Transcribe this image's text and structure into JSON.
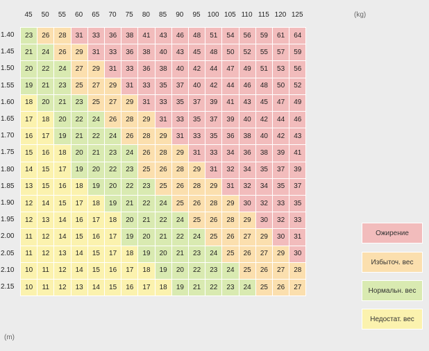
{
  "chart_data": {
    "type": "heatmap",
    "x_unit": "(kg)",
    "y_unit": "(m)",
    "weights": [
      "45",
      "50",
      "55",
      "60",
      "65",
      "70",
      "75",
      "80",
      "85",
      "90",
      "95",
      "100",
      "105",
      "110",
      "115",
      "120",
      "125"
    ],
    "heights": [
      "1.40",
      "1.45",
      "1.50",
      "1.55",
      "1.60",
      "1.65",
      "1.70",
      "1.75",
      "1.80",
      "1.85",
      "1.90",
      "1.95",
      "2.00",
      "2.05",
      "2.10",
      "2.15"
    ],
    "values": [
      [
        23,
        26,
        28,
        31,
        33,
        36,
        38,
        41,
        43,
        46,
        48,
        51,
        54,
        56,
        59,
        61,
        64
      ],
      [
        21,
        24,
        26,
        29,
        31,
        33,
        36,
        38,
        40,
        43,
        45,
        48,
        50,
        52,
        55,
        57,
        59
      ],
      [
        20,
        22,
        24,
        27,
        29,
        31,
        33,
        36,
        38,
        40,
        42,
        44,
        47,
        49,
        51,
        53,
        56
      ],
      [
        19,
        21,
        23,
        25,
        27,
        29,
        31,
        33,
        35,
        37,
        40,
        42,
        44,
        46,
        48,
        50,
        52
      ],
      [
        18,
        20,
        21,
        23,
        25,
        27,
        29,
        31,
        33,
        35,
        37,
        39,
        41,
        43,
        45,
        47,
        49
      ],
      [
        17,
        18,
        20,
        22,
        24,
        26,
        28,
        29,
        31,
        33,
        35,
        37,
        39,
        40,
        42,
        44,
        46
      ],
      [
        16,
        17,
        19,
        21,
        22,
        24,
        26,
        28,
        29,
        31,
        33,
        35,
        36,
        38,
        40,
        42,
        43
      ],
      [
        15,
        16,
        18,
        20,
        21,
        23,
        24,
        26,
        28,
        29,
        31,
        33,
        34,
        36,
        38,
        39,
        41
      ],
      [
        14,
        15,
        17,
        19,
        20,
        22,
        23,
        25,
        26,
        28,
        29,
        31,
        32,
        34,
        35,
        37,
        39
      ],
      [
        13,
        15,
        16,
        18,
        19,
        20,
        22,
        23,
        25,
        26,
        28,
        29,
        31,
        32,
        34,
        35,
        37
      ],
      [
        12,
        14,
        15,
        17,
        18,
        19,
        21,
        22,
        24,
        25,
        26,
        28,
        29,
        30,
        32,
        33,
        35
      ],
      [
        12,
        13,
        14,
        16,
        17,
        18,
        20,
        21,
        22,
        24,
        25,
        26,
        28,
        29,
        30,
        32,
        33
      ],
      [
        11,
        12,
        14,
        15,
        16,
        17,
        19,
        20,
        21,
        22,
        24,
        25,
        26,
        27,
        29,
        30,
        31
      ],
      [
        11,
        12,
        13,
        14,
        15,
        17,
        18,
        19,
        20,
        21,
        23,
        24,
        25,
        26,
        27,
        29,
        30
      ],
      [
        10,
        11,
        12,
        14,
        15,
        16,
        17,
        18,
        19,
        20,
        22,
        23,
        24,
        25,
        26,
        27,
        28
      ],
      [
        10,
        11,
        12,
        13,
        14,
        15,
        16,
        17,
        18,
        19,
        21,
        22,
        23,
        24,
        25,
        26,
        27
      ]
    ],
    "categories": [
      {
        "key": "obese",
        "label": "Ожирение",
        "min": 30,
        "color": "#f2bcbc"
      },
      {
        "key": "overweight",
        "label": "Избыточ. вес",
        "min": 25,
        "color": "#fbdfae"
      },
      {
        "key": "normal",
        "label": "Нормальн. вес",
        "min": 18.5,
        "color": "#d9eab1"
      },
      {
        "key": "underweight",
        "label": "Недостат. вес",
        "min": 0,
        "color": "#fbf2ae"
      }
    ]
  }
}
